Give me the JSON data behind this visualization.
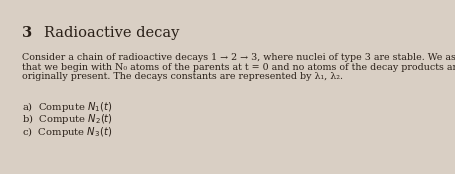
{
  "bg_color": "#d9cfc4",
  "section_number": "3",
  "title": "Radioactive decay",
  "paragraph_line1": "Consider a chain of radioactive decays 1 → 2 → 3, where nuclei of type 3 are stable. We assume",
  "paragraph_line2": "that we begin with N₀ atoms of the parents at t = 0 and no atoms of the decay products are",
  "paragraph_line3": "originally present. The decays constants are represented by λ₁, λ₂.",
  "item_a": "a)  Compute $N_1(t)$",
  "item_b": "b)  Compute $N_2(t)$",
  "item_c": "c)  Compute $N_3(t)$",
  "title_fontsize": 10.5,
  "number_fontsize": 10.5,
  "paragraph_fontsize": 6.8,
  "item_fontsize": 7.2,
  "text_color": "#2a2018"
}
